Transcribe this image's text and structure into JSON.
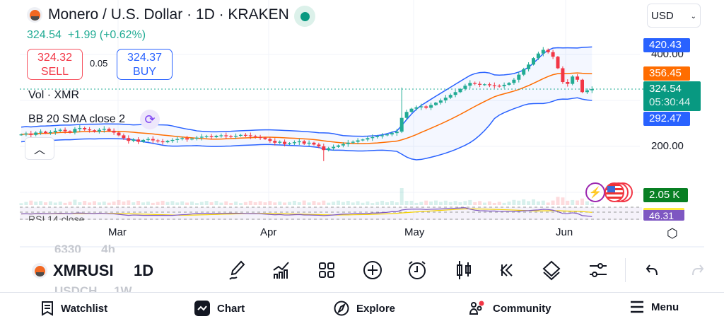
{
  "header": {
    "title": "Monero / U.S. Dollar · 1D · KRAKEN",
    "last": "324.54",
    "change": "+1.99 (+0.62%)",
    "sell_price": "324.32",
    "sell_label": "SELL",
    "spread": "0.05",
    "buy_price": "324.37",
    "buy_label": "BUY",
    "currency": "USD"
  },
  "legends": {
    "volume": "Vol · XMR",
    "bb": "BB 20 SMA close 2",
    "rsi": "RSI 14 close"
  },
  "price_tags": {
    "bb_upper": "420.43",
    "bb_basis": "356.45",
    "last": "324.54",
    "countdown": "05:30:44",
    "bb_lower": "292.47",
    "volume": "2.05 K",
    "rsi": "46.31"
  },
  "price_axis": [
    "400.00",
    "200.00"
  ],
  "date_axis": [
    "Mar",
    "Apr",
    "May",
    "Jun"
  ],
  "toolbar": {
    "symbol": "XMRUSD",
    "interval": "1D",
    "ghost_above": [
      "6330",
      "4h"
    ],
    "ghost_below": [
      "USDCH",
      "1W"
    ],
    "icons": [
      "pencil-icon",
      "indicators-icon",
      "templates-icon",
      "add-icon",
      "alert-clock-icon",
      "candles-icon",
      "replay-icon",
      "layers-icon",
      "settings-sliders-icon",
      "undo-icon",
      "redo-icon"
    ]
  },
  "bottom_nav": [
    {
      "label": "Watchlist",
      "icon": "watchlist-icon"
    },
    {
      "label": "Chart",
      "icon": "chart-icon"
    },
    {
      "label": "Explore",
      "icon": "compass-icon"
    },
    {
      "label": "Community",
      "icon": "community-icon"
    },
    {
      "label": "Menu",
      "icon": "menu-icon"
    }
  ],
  "colors": {
    "up": "#22ab94",
    "down": "#f23645",
    "bb": "#2962ff",
    "basis": "#ff6d00",
    "rsi": "#7e57c2"
  },
  "chart_data": {
    "type": "candlestick",
    "start": "Feb 10",
    "ylim": [
      160,
      440
    ],
    "closes": [
      226,
      228,
      225,
      230,
      232,
      229,
      231,
      234,
      236,
      233,
      230,
      238,
      240,
      237,
      235,
      232,
      236,
      238,
      234,
      230,
      224,
      218,
      212,
      215,
      210,
      214,
      216,
      213,
      211,
      209,
      212,
      214,
      216,
      218,
      215,
      217,
      219,
      221,
      222,
      220,
      223,
      224,
      222,
      221,
      223,
      225,
      224,
      222,
      220,
      219,
      216,
      212,
      208,
      210,
      205,
      207,
      209,
      211,
      206,
      208,
      204,
      200,
      192,
      196,
      199,
      202,
      205,
      208,
      210,
      213,
      215,
      218,
      220,
      222,
      224,
      226,
      229,
      232,
      262,
      275,
      282,
      285,
      287,
      284,
      290,
      295,
      300,
      306,
      312,
      318,
      325,
      332,
      338,
      336,
      334,
      335,
      333,
      332,
      331,
      334,
      338,
      345,
      356,
      368,
      378,
      392,
      402,
      410,
      405,
      395,
      370,
      340,
      336,
      352,
      345,
      318,
      322,
      324.54
    ]
  }
}
